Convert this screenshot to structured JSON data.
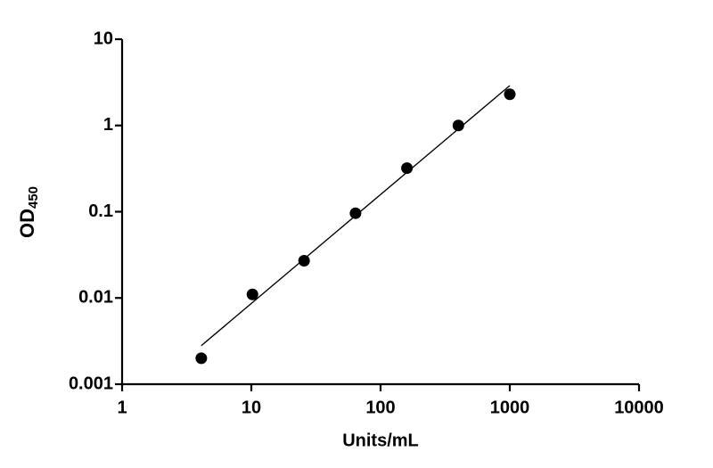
{
  "chart_data": {
    "type": "scatter",
    "xlabel": "Units/mL",
    "ylabel": "OD",
    "ylabel_sub": "450",
    "xscale": "log",
    "yscale": "log",
    "xlim": [
      1,
      10000
    ],
    "ylim": [
      0.001,
      10
    ],
    "xticks": [
      1,
      10,
      100,
      1000,
      10000
    ],
    "yticks": [
      0.001,
      0.01,
      0.1,
      1,
      10
    ],
    "color": "#000000",
    "x": [
      4.1,
      10.2,
      25.6,
      64,
      160,
      400,
      1000
    ],
    "values": [
      0.002,
      0.011,
      0.027,
      0.096,
      0.32,
      1.0,
      2.3
    ],
    "fit_line": {
      "x": [
        4.1,
        1000
      ],
      "y": [
        0.0028,
        2.9
      ]
    }
  }
}
